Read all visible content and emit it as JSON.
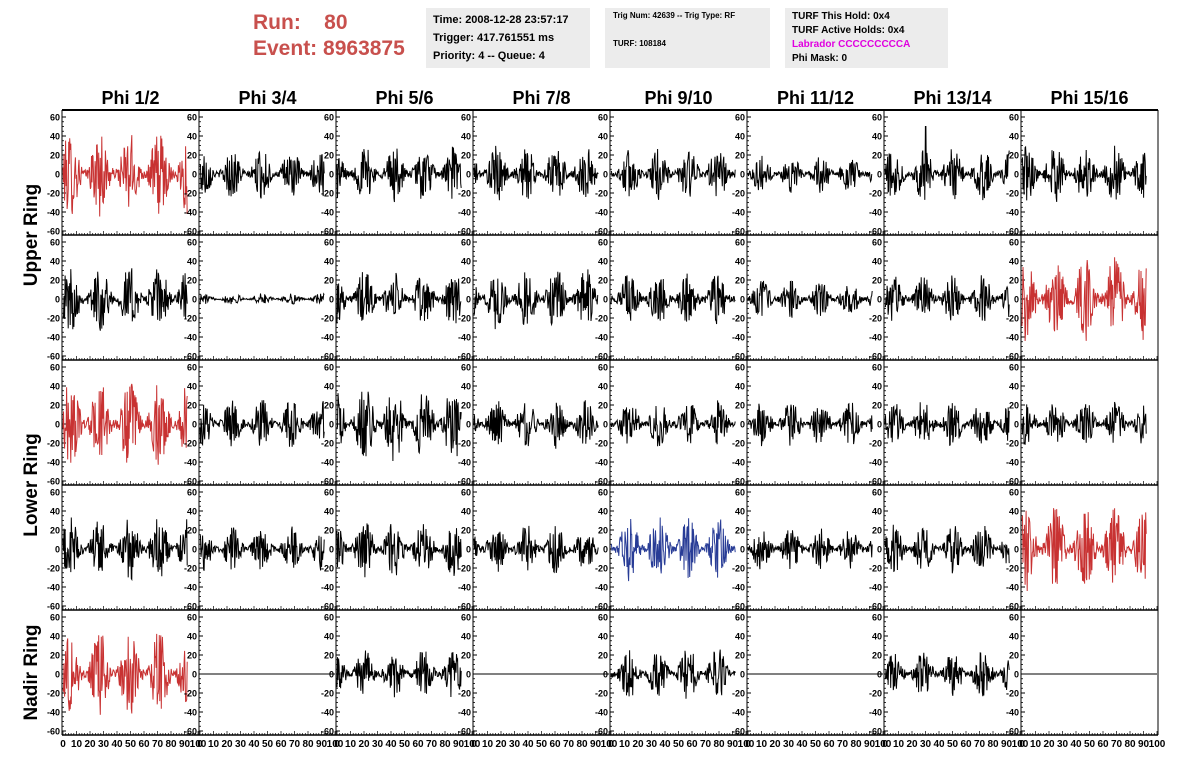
{
  "header": {
    "run_label": "Run:",
    "run_value": "80",
    "event_label": "Event:",
    "event_value": "8963875"
  },
  "info_time": {
    "time": "Time: 2008-12-28 23:57:17",
    "trigger": "Trigger: 417.761551 ms",
    "priority": "Priority: 4 -- Queue: 4"
  },
  "info_trig": {
    "trig": "Trig Num: 42639 -- Trig Type: RF",
    "turf": "TURF: 108184"
  },
  "info_turf": {
    "this_hold": "TURF This Hold: 0x4",
    "active_holds": "TURF Active Holds: 0x4",
    "labrador": "Labrador CCCCCCCCCA",
    "phi_mask": "Phi Mask: 0"
  },
  "colors": {
    "red": "#c83232",
    "blue": "#283c96",
    "black": "#000000",
    "header_red": "#c8504d",
    "labrador": "#e000e0",
    "info_bg": "#ececec"
  },
  "phi_labels": [
    "Phi 1/2",
    "Phi 3/4",
    "Phi 5/6",
    "Phi 7/8",
    "Phi 9/10",
    "Phi 11/12",
    "Phi 13/14",
    "Phi 15/16"
  ],
  "ring_labels": [
    "Upper Ring",
    "Lower Ring",
    "Nadir Ring"
  ],
  "y_ticks": [
    "60",
    "40",
    "20",
    "0",
    "-20",
    "-40",
    "-60"
  ],
  "x_ticks": [
    "0",
    "10",
    "20",
    "30",
    "40",
    "50",
    "60",
    "70",
    "80",
    "90",
    "100"
  ],
  "chart_data": {
    "type": "line",
    "x_range": [
      0,
      100
    ],
    "y_range": [
      -60,
      60
    ],
    "rows": [
      {
        "ring": "Upper Ring",
        "channels": [
          {
            "color": "red",
            "amplitude": 45
          },
          {
            "color": "black",
            "amplitude": 26
          },
          {
            "color": "black",
            "amplitude": 30
          },
          {
            "color": "black",
            "amplitude": 30
          },
          {
            "color": "black",
            "amplitude": 28
          },
          {
            "color": "black",
            "amplitude": 20
          },
          {
            "color": "black",
            "amplitude": 28,
            "spike": [
              30,
              50
            ]
          },
          {
            "color": "black",
            "amplitude": 30
          }
        ]
      },
      {
        "ring": "Upper Ring",
        "channels": [
          {
            "color": "black",
            "amplitude": 35
          },
          {
            "color": "black",
            "amplitude": 6
          },
          {
            "color": "black",
            "amplitude": 30
          },
          {
            "color": "black",
            "amplitude": 33
          },
          {
            "color": "black",
            "amplitude": 28
          },
          {
            "color": "black",
            "amplitude": 20
          },
          {
            "color": "black",
            "amplitude": 26
          },
          {
            "color": "red",
            "amplitude": 45
          }
        ]
      },
      {
        "ring": "Lower Ring",
        "channels": [
          {
            "color": "red",
            "amplitude": 45
          },
          {
            "color": "black",
            "amplitude": 26
          },
          {
            "color": "black",
            "amplitude": 40
          },
          {
            "color": "black",
            "amplitude": 26
          },
          {
            "color": "black",
            "amplitude": 26
          },
          {
            "color": "black",
            "amplitude": 24
          },
          {
            "color": "black",
            "amplitude": 26
          },
          {
            "color": "black",
            "amplitude": 24
          }
        ]
      },
      {
        "ring": "Lower Ring",
        "channels": [
          {
            "color": "black",
            "amplitude": 34
          },
          {
            "color": "black",
            "amplitude": 24
          },
          {
            "color": "black",
            "amplitude": 30
          },
          {
            "color": "black",
            "amplitude": 26
          },
          {
            "color": "blue",
            "amplitude": 34
          },
          {
            "color": "black",
            "amplitude": 22
          },
          {
            "color": "black",
            "amplitude": 26
          },
          {
            "color": "red",
            "amplitude": 45
          }
        ]
      },
      {
        "ring": "Nadir Ring",
        "channels": [
          {
            "color": "red",
            "amplitude": 45
          },
          {
            "color": "black",
            "amplitude": 0
          },
          {
            "color": "black",
            "amplitude": 26
          },
          {
            "color": "black",
            "amplitude": 0
          },
          {
            "color": "black",
            "amplitude": 28
          },
          {
            "color": "black",
            "amplitude": 0
          },
          {
            "color": "black",
            "amplitude": 24
          },
          {
            "color": "black",
            "amplitude": 0
          }
        ]
      }
    ]
  }
}
